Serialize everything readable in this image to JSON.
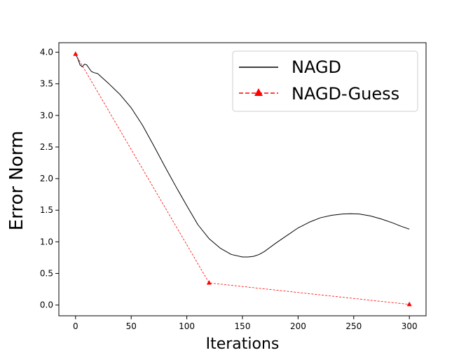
{
  "chart_data": {
    "type": "line",
    "xlabel": "Iterations",
    "ylabel": "Error Norm",
    "xlim": [
      -15,
      315
    ],
    "ylim": [
      -0.17,
      4.15
    ],
    "xticks": [
      0,
      50,
      100,
      150,
      200,
      250,
      300
    ],
    "yticks": [
      0.0,
      0.5,
      1.0,
      1.5,
      2.0,
      2.5,
      3.0,
      3.5,
      4.0
    ],
    "ytick_labels": [
      "0.0",
      "0.5",
      "1.0",
      "1.5",
      "2.0",
      "2.5",
      "3.0",
      "3.5",
      "4.0"
    ],
    "grid": false,
    "legend_position": "top-right",
    "series": [
      {
        "name": "NAGD",
        "color": "#000000",
        "style": "solid",
        "marker": "none",
        "x": [
          0,
          2,
          4,
          6,
          8,
          10,
          12,
          14,
          16,
          18,
          20,
          25,
          30,
          40,
          50,
          60,
          70,
          80,
          90,
          100,
          110,
          120,
          130,
          140,
          150,
          155,
          160,
          165,
          170,
          180,
          190,
          200,
          210,
          220,
          230,
          240,
          247,
          255,
          265,
          275,
          285,
          292,
          300
        ],
        "y": [
          3.97,
          3.9,
          3.8,
          3.77,
          3.81,
          3.8,
          3.75,
          3.7,
          3.68,
          3.67,
          3.66,
          3.58,
          3.5,
          3.33,
          3.12,
          2.85,
          2.53,
          2.2,
          1.88,
          1.57,
          1.27,
          1.05,
          0.9,
          0.8,
          0.76,
          0.76,
          0.77,
          0.8,
          0.85,
          0.98,
          1.1,
          1.22,
          1.31,
          1.38,
          1.42,
          1.44,
          1.445,
          1.44,
          1.41,
          1.36,
          1.3,
          1.25,
          1.2
        ]
      },
      {
        "name": "NAGD-Guess",
        "color": "#ff0000",
        "style": "dashed",
        "marker": "triangle",
        "x": [
          0,
          120,
          300
        ],
        "y": [
          3.97,
          0.35,
          0.01
        ]
      }
    ]
  }
}
